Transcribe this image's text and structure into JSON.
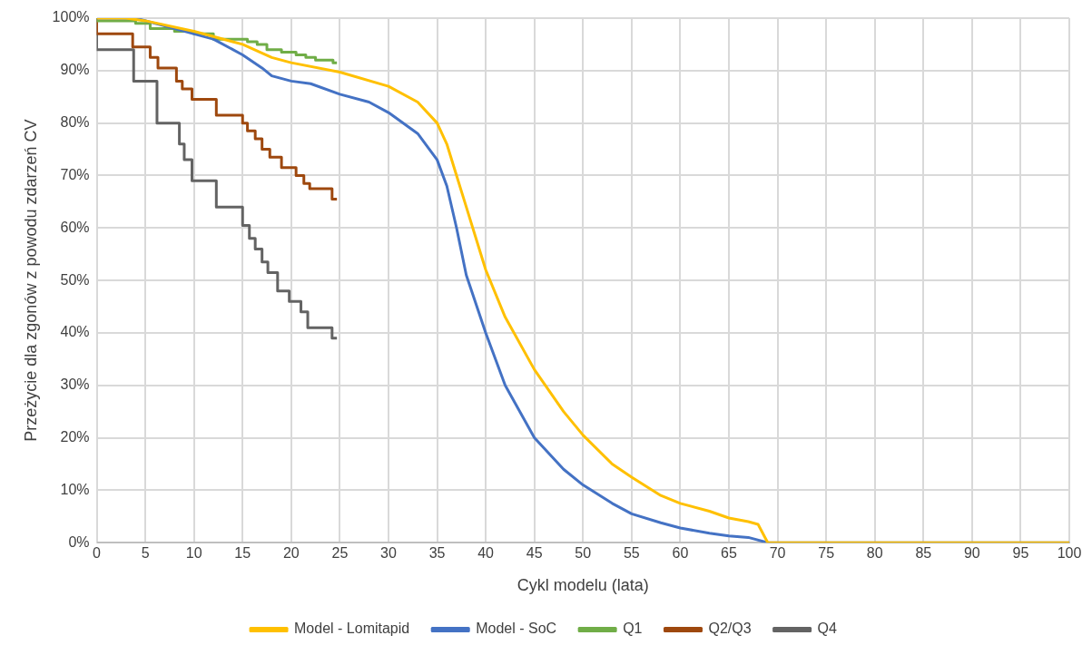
{
  "chart_data": {
    "type": "line",
    "xlabel": "Cykl modelu (lata)",
    "ylabel": "Przeżycie dla zgonów z powodu zdarzeń CV",
    "xlim": [
      0,
      100
    ],
    "xticks": [
      0,
      5,
      10,
      15,
      20,
      25,
      30,
      35,
      40,
      45,
      50,
      55,
      60,
      65,
      70,
      75,
      80,
      85,
      90,
      95,
      100
    ],
    "ylim": [
      0,
      100
    ],
    "yticks": [
      {
        "value": 0,
        "label": "0%"
      },
      {
        "value": 10,
        "label": "10%"
      },
      {
        "value": 20,
        "label": "20%"
      },
      {
        "value": 30,
        "label": "30%"
      },
      {
        "value": 40,
        "label": "40%"
      },
      {
        "value": 50,
        "label": "50%"
      },
      {
        "value": 60,
        "label": "60%"
      },
      {
        "value": 70,
        "label": "70%"
      },
      {
        "value": 80,
        "label": "80%"
      },
      {
        "value": 90,
        "label": "90%"
      },
      {
        "value": 100,
        "label": "100%"
      }
    ],
    "grid": true,
    "legend": "bottom",
    "marker": "none",
    "line_style": "solid",
    "series": [
      {
        "name": "Model - Lomitapid",
        "color": "#ffc000",
        "x": [
          0,
          3,
          5,
          10,
          15,
          18,
          20,
          25,
          30,
          33,
          35,
          36,
          37,
          38,
          40,
          42,
          45,
          48,
          50,
          53,
          55,
          58,
          60,
          63,
          65,
          67,
          68,
          69,
          100
        ],
        "values": [
          100,
          100,
          99.5,
          97.5,
          95,
          92.5,
          91.5,
          89.7,
          87,
          84,
          80,
          76,
          70,
          64,
          52,
          43,
          33,
          25,
          20.5,
          15,
          12.5,
          9,
          7.5,
          6,
          4.7,
          4,
          3.5,
          0,
          0
        ]
      },
      {
        "name": "Model - SoC",
        "color": "#4472c4",
        "x": [
          0,
          4,
          7,
          10,
          12,
          15,
          17,
          18,
          20,
          22,
          25,
          28,
          30,
          33,
          35,
          36,
          37,
          38,
          40,
          42,
          45,
          48,
          50,
          53,
          55,
          58,
          60,
          63,
          65,
          67,
          69,
          100
        ],
        "values": [
          100,
          100,
          98.5,
          97,
          96,
          93,
          90.5,
          89,
          88,
          87.5,
          85.5,
          84,
          82,
          78,
          73,
          68,
          60,
          51,
          40,
          30,
          20,
          14,
          11,
          7.5,
          5.5,
          3.8,
          2.8,
          1.8,
          1.3,
          1,
          0,
          0
        ]
      },
      {
        "name": "Q1",
        "type": "step",
        "color": "#70ad47",
        "x": [
          0,
          0,
          4,
          5.5,
          8,
          10,
          12,
          15.5,
          16.5,
          17.5,
          19,
          20.5,
          21.5,
          22.5,
          24.3,
          24.7
        ],
        "values": [
          100,
          99.5,
          99,
          98,
          97.5,
          97,
          96,
          95.5,
          95,
          94,
          93.5,
          93,
          92.5,
          92,
          91.5,
          91.5
        ]
      },
      {
        "name": "Q2/Q3",
        "type": "step",
        "color": "#9e480e",
        "x": [
          0,
          0,
          3.7,
          5.5,
          6.3,
          8.2,
          8.8,
          9.8,
          12.3,
          15,
          15.5,
          16.3,
          17,
          17.8,
          19,
          20.5,
          21.3,
          21.9,
          24.2,
          24.7
        ],
        "values": [
          100,
          97,
          94.5,
          92.5,
          90.5,
          88,
          86.5,
          84.5,
          81.5,
          80,
          78.5,
          77,
          75,
          73.5,
          71.5,
          70,
          68.5,
          67.5,
          65.5,
          65.5
        ]
      },
      {
        "name": "Q4",
        "type": "step",
        "color": "#636363",
        "x": [
          0,
          0,
          3.8,
          6.2,
          8.5,
          9,
          9.8,
          12.3,
          15,
          15.7,
          16.3,
          17,
          17.6,
          18.6,
          19.8,
          21,
          21.7,
          24.2,
          24.7
        ],
        "values": [
          100,
          94,
          88,
          80,
          76,
          73,
          69,
          64,
          60.5,
          58,
          56,
          53.5,
          51.5,
          48,
          46,
          44,
          41,
          39,
          39
        ]
      }
    ]
  }
}
